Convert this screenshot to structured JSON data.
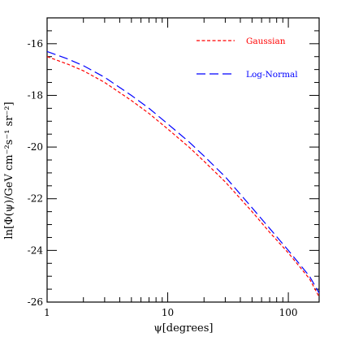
{
  "chart_data": {
    "type": "line",
    "xlabel": "ψ[degrees]",
    "ylabel": "ln[Φ(ψ)/GeV cm⁻²s⁻¹ sr⁻²]",
    "xscale": "log",
    "xlim": [
      1,
      180
    ],
    "ylim": [
      -26,
      -15
    ],
    "x_ticks": [
      1,
      10,
      100
    ],
    "x_tick_labels": [
      "1",
      "10",
      "100"
    ],
    "y_ticks": [
      -26,
      -24,
      -22,
      -20,
      -18,
      -16
    ],
    "y_tick_labels": [
      "-26",
      "-24",
      "-22",
      "-20",
      "-18",
      "-16"
    ],
    "grid": false,
    "legend_position": "top-right",
    "series": [
      {
        "name": "Gaussian",
        "color": "#ff0000",
        "dash": "short",
        "x": [
          1,
          1.5,
          2,
          3,
          5,
          7,
          10,
          15,
          20,
          30,
          50,
          70,
          100,
          150,
          180
        ],
        "y": [
          -16.5,
          -16.8,
          -17.05,
          -17.5,
          -18.2,
          -18.7,
          -19.3,
          -20.0,
          -20.55,
          -21.35,
          -22.5,
          -23.3,
          -24.1,
          -25.1,
          -25.8
        ]
      },
      {
        "name": "Log-Normal",
        "color": "#0000ff",
        "dash": "long",
        "x": [
          1,
          1.5,
          2,
          3,
          5,
          7,
          10,
          15,
          20,
          30,
          50,
          70,
          100,
          150,
          180
        ],
        "y": [
          -16.3,
          -16.6,
          -16.85,
          -17.3,
          -18.0,
          -18.5,
          -19.1,
          -19.8,
          -20.35,
          -21.15,
          -22.35,
          -23.15,
          -24.0,
          -25.0,
          -25.65
        ]
      }
    ]
  }
}
